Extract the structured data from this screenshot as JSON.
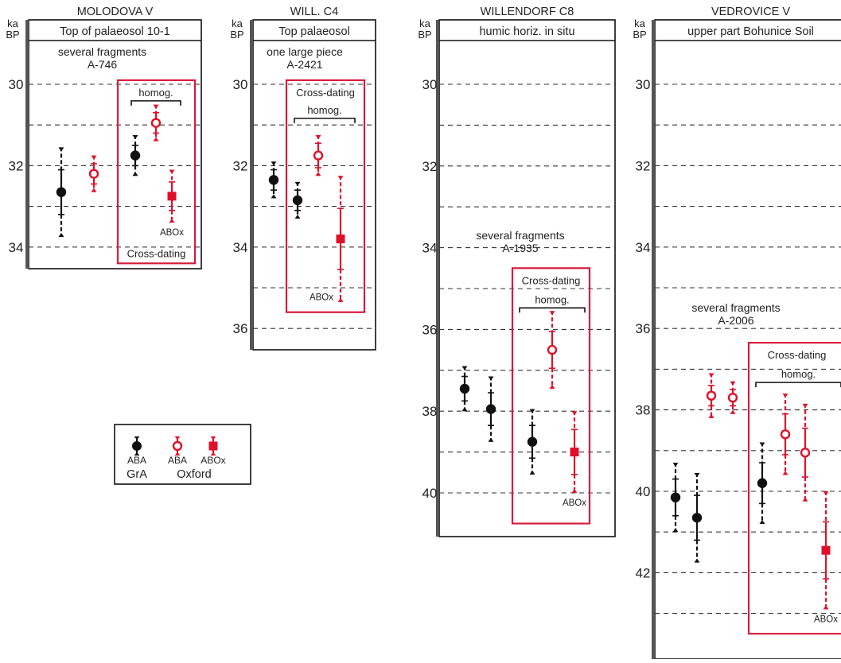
{
  "colors": {
    "gra": "#111111",
    "oxford": "#e0102a",
    "box": "#d81b3c",
    "grid": "#333333"
  },
  "axis_unit": [
    "ka",
    "BP"
  ],
  "legend": {
    "items": [
      {
        "label": "ABA",
        "marker": "filled-circle",
        "color": "#111111"
      },
      {
        "label": "ABA",
        "marker": "open-circle",
        "color": "#e0102a"
      },
      {
        "label": "ABOx",
        "marker": "filled-square",
        "color": "#e0102a"
      }
    ],
    "groups": [
      "GrA",
      "Oxford"
    ]
  },
  "chart_data": [
    {
      "type": "scatter",
      "site": "MOLODOVA V",
      "context": "Top of palaeosol 10-1",
      "sample": [
        "several fragments",
        "A-746"
      ],
      "ylim": [
        29.3,
        34.5
      ],
      "yticks": [
        30,
        32,
        34
      ],
      "dashed_lines": [
        30,
        31,
        32,
        33,
        34
      ],
      "box": {
        "y_range": [
          29.9,
          34.4
        ],
        "labels": {
          "homog": "homog.",
          "crossdating": "Cross-dating",
          "abox": "ABOx"
        }
      },
      "points": [
        {
          "lab": "GrA",
          "method": "ABA",
          "y": 32.65,
          "s1": 0.55,
          "s2": 1.1
        },
        {
          "lab": "Oxford",
          "method": "ABA",
          "y": 32.2,
          "s1": 0.25,
          "s2": 0.45
        },
        {
          "lab": "GrA",
          "method": "ABA",
          "y": 31.75,
          "s1": 0.25,
          "s2": 0.5
        },
        {
          "lab": "Oxford",
          "method": "ABA",
          "y": 30.95,
          "s1": 0.25,
          "s2": 0.45
        },
        {
          "lab": "Oxford",
          "method": "ABOx",
          "y": 32.75,
          "s1": 0.35,
          "s2": 0.65
        }
      ]
    },
    {
      "type": "scatter",
      "site": "WILL. C4",
      "context": "Top palaeosol",
      "sample": [
        "one large piece",
        "A-2421"
      ],
      "ylim": [
        29.3,
        36.5
      ],
      "yticks": [
        30,
        32,
        34,
        36
      ],
      "dashed_lines": [
        30,
        31,
        32,
        33,
        34,
        35,
        36
      ],
      "box": {
        "y_range": [
          29.9,
          35.6
        ],
        "labels": {
          "crossdating": "Cross-dating",
          "homog": "homog.",
          "abox": "ABOx"
        }
      },
      "points": [
        {
          "lab": "GrA",
          "method": "ABA",
          "y": 32.35,
          "s1": 0.25,
          "s2": 0.45
        },
        {
          "lab": "GrA",
          "method": "ABA",
          "y": 32.85,
          "s1": 0.25,
          "s2": 0.45
        },
        {
          "lab": "Oxford",
          "method": "ABA",
          "y": 31.75,
          "s1": 0.3,
          "s2": 0.5
        },
        {
          "lab": "Oxford",
          "method": "ABOx",
          "y": 33.8,
          "s1": 0.75,
          "s2": 1.55
        }
      ]
    },
    {
      "type": "scatter",
      "site": "WILLENDORF C8",
      "context": "humic horiz. in situ",
      "sample": [
        "several fragments",
        "A-1935"
      ],
      "ylim": [
        29.3,
        41.0
      ],
      "yticks": [
        30,
        32,
        34,
        36,
        38,
        40
      ],
      "dashed_lines": [
        30,
        31,
        32,
        33,
        34,
        35,
        36,
        37,
        38,
        39,
        40
      ],
      "box": {
        "y_range": [
          34.5,
          40.75
        ],
        "labels": {
          "crossdating": "Cross-dating",
          "homog": "homog.",
          "abox": "ABOx"
        }
      },
      "points": [
        {
          "lab": "GrA",
          "method": "ABA",
          "y": 37.45,
          "s1": 0.3,
          "s2": 0.55
        },
        {
          "lab": "GrA",
          "method": "ABA",
          "y": 37.95,
          "s1": 0.4,
          "s2": 0.8
        },
        {
          "lab": "GrA",
          "method": "ABA",
          "y": 38.75,
          "s1": 0.4,
          "s2": 0.8
        },
        {
          "lab": "Oxford",
          "method": "ABA",
          "y": 36.5,
          "s1": 0.45,
          "s2": 0.95
        },
        {
          "lab": "Oxford",
          "method": "ABOx",
          "y": 39.0,
          "s1": 0.55,
          "s2": 1.0
        }
      ]
    },
    {
      "type": "scatter",
      "site": "VEDROVICE V",
      "context": "upper part Bohunice Soil",
      "sample": [
        "several fragments",
        "A-2006"
      ],
      "ylim": [
        29.3,
        43.5
      ],
      "yticks": [
        30,
        32,
        34,
        36,
        38,
        40,
        42
      ],
      "dashed_lines": [
        30,
        31,
        32,
        33,
        34,
        35,
        36,
        37,
        38,
        39,
        40,
        41,
        42,
        43
      ],
      "box": {
        "y_range": [
          36.35,
          43.5
        ],
        "labels": {
          "crossdating": "Cross-dating",
          "homog": "homog.",
          "abox": "ABOx"
        }
      },
      "points": [
        {
          "lab": "Oxford",
          "method": "ABA",
          "y": 37.65,
          "s1": 0.25,
          "s2": 0.55
        },
        {
          "lab": "Oxford",
          "method": "ABA",
          "y": 37.7,
          "s1": 0.2,
          "s2": 0.4
        },
        {
          "lab": "GrA",
          "method": "ABA",
          "y": 40.15,
          "s1": 0.45,
          "s2": 0.85
        },
        {
          "lab": "GrA",
          "method": "ABA",
          "y": 40.65,
          "s1": 0.55,
          "s2": 1.1
        },
        {
          "lab": "GrA",
          "method": "ABA",
          "y": 39.8,
          "s1": 0.5,
          "s2": 1.0
        },
        {
          "lab": "Oxford",
          "method": "ABA",
          "y": 38.6,
          "s1": 0.5,
          "s2": 1.0
        },
        {
          "lab": "Oxford",
          "method": "ABA",
          "y": 39.05,
          "s1": 0.6,
          "s2": 1.2
        },
        {
          "lab": "Oxford",
          "method": "ABOx",
          "y": 41.45,
          "s1": 0.7,
          "s2": 1.45
        }
      ]
    }
  ]
}
